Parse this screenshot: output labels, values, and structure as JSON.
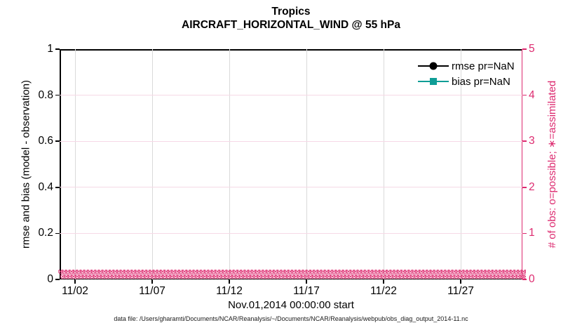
{
  "figure": {
    "title_line1": "Tropics",
    "title_line2": "AIRCRAFT_HORIZONTAL_WIND @ 55 hPa",
    "footnote": "data file: /Users/gharamti/Documents/NCAR/Reanalysis/~/Documents/NCAR/Reanalysis/webpub/obs_diag_output_2014-11.nc"
  },
  "chart_data": {
    "type": "line",
    "title": "Tropics",
    "subtitle": "AIRCRAFT_HORIZONTAL_WIND @ 55 hPa",
    "xlabel": "Nov.01,2014 00:00:00 start",
    "x_axis": {
      "tick_labels": [
        "11/02",
        "11/07",
        "11/12",
        "11/17",
        "11/22",
        "11/27"
      ],
      "tick_days": [
        1,
        6,
        11,
        16,
        21,
        26
      ],
      "range_days": [
        0,
        30
      ],
      "start": "Nov.01,2014 00:00:00"
    },
    "left_axis": {
      "label": "rmse and bias (model - observation)",
      "ticks": [
        0,
        0.2,
        0.4,
        0.6,
        0.8,
        1
      ],
      "tick_labels": [
        "0",
        "0.2",
        "0.4",
        "0.6",
        "0.8",
        "1"
      ],
      "range": [
        0,
        1
      ],
      "color": "#000000"
    },
    "right_axis": {
      "label": "# of obs: o=possible; ∗=assimilated",
      "ticks": [
        0,
        1,
        2,
        3,
        4,
        5
      ],
      "tick_labels": [
        "0",
        "1",
        "2",
        "3",
        "4",
        "5"
      ],
      "range": [
        0,
        5
      ],
      "color": "#dd2a6f"
    },
    "series": [
      {
        "name": "rmse pr=NaN",
        "color": "#000000",
        "marker": "circle",
        "line": "solid",
        "value": "NaN"
      },
      {
        "name": "bias pr=NaN",
        "color": "#0f9d96",
        "marker": "square",
        "line": "solid",
        "value": "NaN"
      }
    ],
    "obs_counts": {
      "possible_marker": "o",
      "assimilated_marker": "∗",
      "constant_value": 0,
      "color": "#dd2a6f",
      "band_glyph": "⊗",
      "band_rows": 2,
      "glyphs_per_row": 130
    },
    "legend": {
      "position": "top-right-inside",
      "entries": [
        "rmse pr=NaN",
        "bias pr=NaN"
      ]
    },
    "grid": {
      "on": true,
      "vertical_color": "#dadada",
      "horizontal_color": "#f6d9e6"
    }
  }
}
